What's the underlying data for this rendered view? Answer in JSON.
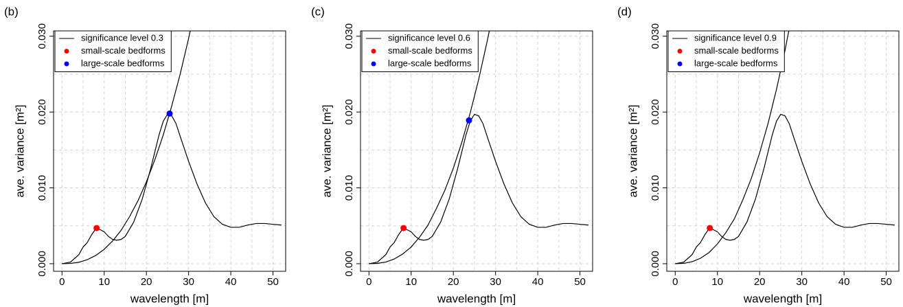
{
  "chart_data": [
    {
      "type": "line",
      "panel_label": "(b)",
      "xlabel": "wavelength [m]",
      "ylabel": "ave. variance [m²]",
      "xlim": [
        -2,
        53
      ],
      "ylim": [
        -0.001,
        0.0307
      ],
      "xticks": [
        0,
        10,
        20,
        30,
        40,
        50
      ],
      "yticks": [
        {
          "value": 0,
          "label": "0.000"
        },
        {
          "value": 0.01,
          "label": "0.010"
        },
        {
          "value": 0.02,
          "label": "0.020"
        },
        {
          "value": 0.03,
          "label": "0.030"
        }
      ],
      "xgrid": [
        0,
        5,
        10,
        15,
        20,
        25,
        30,
        35,
        40,
        45,
        50
      ],
      "ygrid": [
        0,
        0.005,
        0.01,
        0.015,
        0.02,
        0.025,
        0.03
      ],
      "grid": true,
      "legend": "top-left",
      "series": [
        {
          "kind": "line",
          "color": "#000000",
          "x": [
            0,
            2,
            4,
            5,
            6,
            7,
            8,
            9,
            10,
            11,
            12,
            13,
            14,
            15,
            17,
            19,
            21,
            23,
            24,
            25,
            26,
            27,
            28,
            30,
            32,
            34,
            36,
            38,
            40,
            42,
            44,
            46,
            48,
            50,
            52
          ],
          "values": [
            0,
            0.0002,
            0.0012,
            0.0022,
            0.0028,
            0.0038,
            0.0046,
            0.0045,
            0.0042,
            0.0036,
            0.0032,
            0.0031,
            0.0032,
            0.0036,
            0.0055,
            0.0085,
            0.0125,
            0.017,
            0.0188,
            0.0197,
            0.0195,
            0.0185,
            0.0168,
            0.0135,
            0.0105,
            0.008,
            0.0062,
            0.0052,
            0.0048,
            0.0048,
            0.0051,
            0.0053,
            0.0053,
            0.0052,
            0.0051
          ]
        },
        {
          "kind": "line",
          "name": "significance level 0.3",
          "color": "#000000",
          "x": [
            0,
            2,
            4,
            6,
            8,
            10,
            12,
            14,
            16,
            18,
            20,
            22,
            24,
            26,
            28,
            30,
            32
          ],
          "values": [
            0,
            3.4e-05,
            0.00019,
            0.00053,
            0.00109,
            0.0019,
            0.003,
            0.0044,
            0.0062,
            0.0083,
            0.0108,
            0.0137,
            0.017,
            0.0208,
            0.025,
            0.0297,
            0.0349
          ]
        },
        {
          "kind": "points",
          "name": "small-scale bedforms",
          "color": "#ff0000",
          "x": [
            8.2
          ],
          "values": [
            0.0047
          ]
        },
        {
          "kind": "points",
          "name": "large-scale bedforms",
          "color": "#0000ff",
          "x": [
            25.5
          ],
          "values": [
            0.0198
          ]
        }
      ]
    },
    {
      "type": "line",
      "panel_label": "(c)",
      "xlabel": "wavelength [m]",
      "ylabel": "ave. variance [m²]",
      "xlim": [
        -2,
        53
      ],
      "ylim": [
        -0.001,
        0.0307
      ],
      "xticks": [
        0,
        10,
        20,
        30,
        40,
        50
      ],
      "yticks": [
        {
          "value": 0,
          "label": "0.000"
        },
        {
          "value": 0.01,
          "label": "0.010"
        },
        {
          "value": 0.02,
          "label": "0.020"
        },
        {
          "value": 0.03,
          "label": "0.030"
        }
      ],
      "xgrid": [
        0,
        5,
        10,
        15,
        20,
        25,
        30,
        35,
        40,
        45,
        50
      ],
      "ygrid": [
        0,
        0.005,
        0.01,
        0.015,
        0.02,
        0.025,
        0.03
      ],
      "grid": true,
      "legend": "top-left",
      "series": [
        {
          "kind": "line",
          "color": "#000000",
          "x": [
            0,
            2,
            4,
            5,
            6,
            7,
            8,
            9,
            10,
            11,
            12,
            13,
            14,
            15,
            17,
            19,
            21,
            23,
            24,
            25,
            26,
            27,
            28,
            30,
            32,
            34,
            36,
            38,
            40,
            42,
            44,
            46,
            48,
            50,
            52
          ],
          "values": [
            0,
            0.0002,
            0.0012,
            0.0022,
            0.0028,
            0.0038,
            0.0046,
            0.0045,
            0.0042,
            0.0036,
            0.0032,
            0.0031,
            0.0032,
            0.0036,
            0.0055,
            0.0085,
            0.0125,
            0.017,
            0.0188,
            0.0197,
            0.0195,
            0.0185,
            0.0168,
            0.0135,
            0.0105,
            0.008,
            0.0062,
            0.0052,
            0.0048,
            0.0048,
            0.0051,
            0.0053,
            0.0053,
            0.0052,
            0.0051
          ]
        },
        {
          "kind": "line",
          "name": "significance level 0.6",
          "color": "#000000",
          "x": [
            0,
            2,
            4,
            6,
            8,
            10,
            12,
            14,
            16,
            18,
            20,
            22,
            24,
            26,
            28,
            30
          ],
          "values": [
            0,
            4e-05,
            0.00022,
            0.00062,
            0.00128,
            0.0022,
            0.0035,
            0.0051,
            0.0073,
            0.0097,
            0.0126,
            0.016,
            0.0199,
            0.0243,
            0.0293,
            0.0347
          ]
        },
        {
          "kind": "points",
          "name": "small-scale bedforms",
          "color": "#ff0000",
          "x": [
            8.2
          ],
          "values": [
            0.0047
          ]
        },
        {
          "kind": "points",
          "name": "large-scale bedforms",
          "color": "#0000ff",
          "x": [
            23.7
          ],
          "values": [
            0.0189
          ]
        }
      ]
    },
    {
      "type": "line",
      "panel_label": "(d)",
      "xlabel": "wavelength [m]",
      "ylabel": "ave. variance [m²]",
      "xlim": [
        -2,
        53
      ],
      "ylim": [
        -0.001,
        0.0307
      ],
      "xticks": [
        0,
        10,
        20,
        30,
        40,
        50
      ],
      "yticks": [
        {
          "value": 0,
          "label": "0.000"
        },
        {
          "value": 0.01,
          "label": "0.010"
        },
        {
          "value": 0.02,
          "label": "0.020"
        },
        {
          "value": 0.03,
          "label": "0.030"
        }
      ],
      "xgrid": [
        0,
        5,
        10,
        15,
        20,
        25,
        30,
        35,
        40,
        45,
        50
      ],
      "ygrid": [
        0,
        0.005,
        0.01,
        0.015,
        0.02,
        0.025,
        0.03
      ],
      "grid": true,
      "legend": "top-left",
      "series": [
        {
          "kind": "line",
          "color": "#000000",
          "x": [
            0,
            2,
            4,
            5,
            6,
            7,
            8,
            9,
            10,
            11,
            12,
            13,
            14,
            15,
            17,
            19,
            21,
            23,
            24,
            25,
            26,
            27,
            28,
            30,
            32,
            34,
            36,
            38,
            40,
            42,
            44,
            46,
            48,
            50,
            52
          ],
          "values": [
            0,
            0.0002,
            0.0012,
            0.0022,
            0.0028,
            0.0038,
            0.0046,
            0.0045,
            0.0042,
            0.0036,
            0.0032,
            0.0031,
            0.0032,
            0.0036,
            0.0055,
            0.0085,
            0.0125,
            0.017,
            0.0188,
            0.0197,
            0.0195,
            0.0185,
            0.0168,
            0.0135,
            0.0105,
            0.008,
            0.0062,
            0.0052,
            0.0048,
            0.0048,
            0.0051,
            0.0053,
            0.0053,
            0.0052,
            0.0051
          ]
        },
        {
          "kind": "line",
          "name": "significance level 0.9",
          "color": "#000000",
          "x": [
            0,
            2,
            4,
            6,
            8,
            10,
            12,
            14,
            16,
            18,
            20,
            22,
            24,
            26,
            28
          ],
          "values": [
            0,
            5e-05,
            0.00026,
            0.00072,
            0.00147,
            0.0026,
            0.0041,
            0.0059,
            0.0084,
            0.0112,
            0.0146,
            0.0185,
            0.023,
            0.0281,
            0.0338
          ]
        },
        {
          "kind": "points",
          "name": "small-scale bedforms",
          "color": "#ff0000",
          "x": [
            8.2
          ],
          "values": [
            0.0047
          ]
        },
        {
          "kind": "points",
          "name": "large-scale bedforms",
          "color": "#0000ff",
          "x": [],
          "values": []
        }
      ]
    }
  ]
}
